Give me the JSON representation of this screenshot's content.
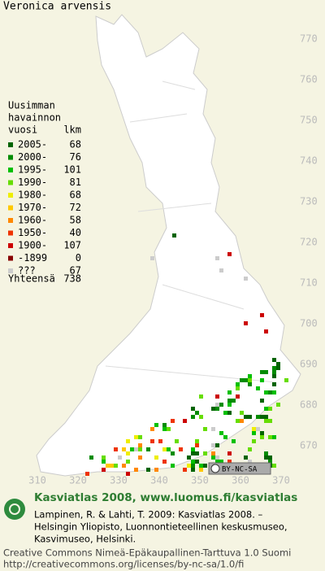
{
  "title": "Veronica arvensis",
  "legend": {
    "header": [
      "Uusimman",
      "havainnon",
      "vuosi"
    ],
    "count_header": "lkm",
    "rows": [
      {
        "label": "2005-",
        "count": 68,
        "color": "#006400"
      },
      {
        "label": "2000-",
        "count": 76,
        "color": "#008c00"
      },
      {
        "label": "1995-",
        "count": 101,
        "color": "#00c000"
      },
      {
        "label": "1990-",
        "count": 81,
        "color": "#66dd00"
      },
      {
        "label": "1980-",
        "count": 68,
        "color": "#eeee00"
      },
      {
        "label": "1970-",
        "count": 72,
        "color": "#ffc800"
      },
      {
        "label": "1960-",
        "count": 58,
        "color": "#ff8800"
      },
      {
        "label": "1950-",
        "count": 40,
        "color": "#ee3300"
      },
      {
        "label": "1900-",
        "count": 107,
        "color": "#cc0000"
      },
      {
        "label": "-1899",
        "count": 0,
        "color": "#880000"
      },
      {
        "label": "???",
        "count": 67,
        "color": "#cccccc"
      }
    ],
    "total_label": "Yhteensä",
    "total": 738
  },
  "grid_labels_y": [
    770,
    760,
    750,
    740,
    730,
    720,
    710,
    700,
    690,
    680,
    670
  ],
  "grid_labels_x": [
    310,
    320,
    330,
    340,
    350,
    360,
    370
  ],
  "badge": "BY-NC-SA",
  "footer": {
    "heading": "Kasviatlas 2008, www.luomus.fi/kasviatlas",
    "citation": [
      "Lampinen, R. & Lahti, T. 2009: Kasviatlas 2008. –",
      "Helsingin Yliopisto, Luonnontieteellinen keskusmuseo,",
      "Kasvimuseo, Helsinki."
    ],
    "license": [
      "Creative Commons Nimeä-Epäkaupallinen-Tarttuva 1.0 Suomi",
      "http://creativecommons.org/licenses/by-nc-sa/1.0/fi"
    ]
  }
}
